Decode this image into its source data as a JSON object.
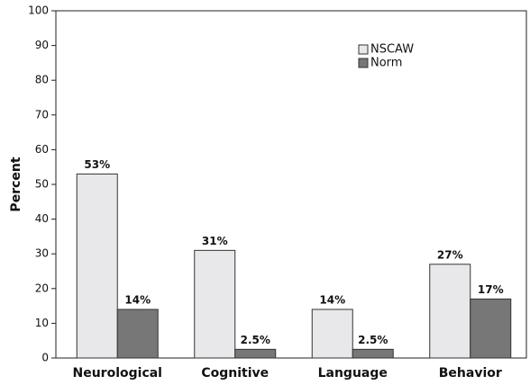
{
  "chart_data": {
    "type": "bar",
    "ylabel": "Percent",
    "categories": [
      "Neurological",
      "Cognitive",
      "Language",
      "Behavior"
    ],
    "series": [
      {
        "name": "NSCAW",
        "color": "#e8e8ea",
        "values": [
          53,
          31,
          14,
          27
        ],
        "value_labels": [
          "53%",
          "31%",
          "14%",
          "27%"
        ]
      },
      {
        "name": "Norm",
        "color": "#777777",
        "values": [
          14,
          2.5,
          2.5,
          17
        ],
        "value_labels": [
          "14%",
          "2.5%",
          "2.5%",
          "17%"
        ]
      }
    ],
    "ylim": [
      0,
      100
    ],
    "yticks": [
      0,
      10,
      20,
      30,
      40,
      50,
      60,
      70,
      80,
      90,
      100
    ],
    "grid": false,
    "legend": "upper right"
  }
}
